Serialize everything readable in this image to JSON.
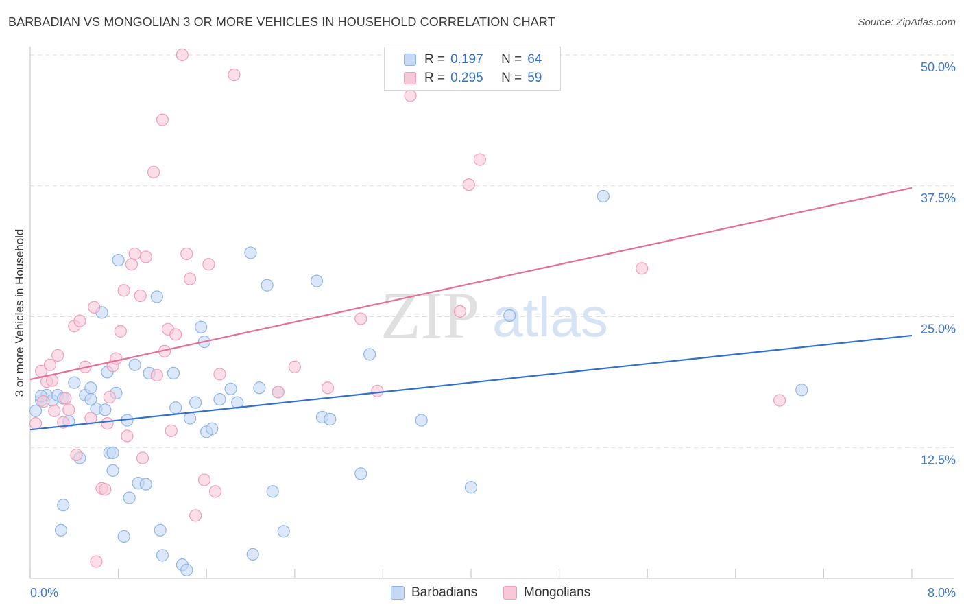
{
  "header": {
    "title": "BARBADIAN VS MONGOLIAN 3 OR MORE VEHICLES IN HOUSEHOLD CORRELATION CHART",
    "source": "Source: ZipAtlas.com"
  },
  "watermark": {
    "zip": "ZIP",
    "atlas": "atlas"
  },
  "legend": {
    "r_label": "R =",
    "n_label": "N =",
    "rows": [
      {
        "r": "0.197",
        "n": "64"
      },
      {
        "r": "0.295",
        "n": "59"
      }
    ]
  },
  "colors": {
    "barbadian_fill": "#c5d9f7",
    "barbadian_stroke": "#8db4e8",
    "barbadian_line": "#2f6fce",
    "mongolian_fill": "#f9c8d8",
    "mongolian_stroke": "#ef9db9",
    "mongolian_line": "#e46e95",
    "axis_label": "#3f78c9",
    "grid": "#dddddd"
  },
  "chart_data": {
    "type": "scatter",
    "title": "BARBADIAN VS MONGOLIAN 3 OR MORE VEHICLES IN HOUSEHOLD CORRELATION CHART",
    "xlabel": "",
    "ylabel": "3 or more Vehicles in Household",
    "xlim": [
      0,
      8
    ],
    "ylim": [
      0,
      50
    ],
    "x_tick_labels": [
      "0.0%",
      "8.0%"
    ],
    "y_ticks": [
      12.5,
      25.0,
      37.5,
      50.0
    ],
    "y_tick_labels": [
      "12.5%",
      "25.0%",
      "37.5%",
      "50.0%"
    ],
    "grid": true,
    "legend_position": "top-center",
    "series": [
      {
        "name": "Barbadians",
        "r": 0.197,
        "n": 64,
        "trend": {
          "x": [
            0,
            8
          ],
          "y": [
            14.2,
            23.2
          ]
        },
        "points": [
          [
            0.05,
            16.0
          ],
          [
            0.1,
            17.0
          ],
          [
            0.15,
            17.5
          ],
          [
            0.2,
            17.0
          ],
          [
            0.25,
            17.5
          ],
          [
            0.3,
            17.2
          ],
          [
            0.35,
            15.0
          ],
          [
            0.4,
            18.7
          ],
          [
            0.45,
            11.5
          ],
          [
            0.5,
            17.5
          ],
          [
            0.55,
            18.2
          ],
          [
            0.6,
            16.2
          ],
          [
            0.65,
            25.4
          ],
          [
            0.68,
            16.1
          ],
          [
            0.7,
            19.7
          ],
          [
            0.72,
            12.0
          ],
          [
            0.75,
            10.3
          ],
          [
            0.78,
            17.7
          ],
          [
            0.8,
            30.4
          ],
          [
            0.85,
            4.0
          ],
          [
            0.88,
            15.1
          ],
          [
            0.9,
            7.7
          ],
          [
            0.95,
            20.4
          ],
          [
            0.98,
            9.1
          ],
          [
            1.05,
            9.0
          ],
          [
            1.08,
            19.6
          ],
          [
            1.15,
            26.9
          ],
          [
            1.18,
            4.6
          ],
          [
            1.2,
            2.2
          ],
          [
            1.3,
            19.6
          ],
          [
            1.32,
            16.3
          ],
          [
            1.38,
            1.3
          ],
          [
            1.42,
            0.8
          ],
          [
            1.45,
            15.3
          ],
          [
            1.5,
            16.8
          ],
          [
            1.55,
            24.0
          ],
          [
            1.58,
            22.6
          ],
          [
            1.6,
            14.0
          ],
          [
            1.65,
            14.3
          ],
          [
            1.72,
            17.1
          ],
          [
            1.82,
            18.1
          ],
          [
            1.88,
            16.8
          ],
          [
            2.0,
            31.1
          ],
          [
            2.02,
            2.3
          ],
          [
            2.08,
            18.2
          ],
          [
            2.15,
            28.0
          ],
          [
            2.2,
            8.3
          ],
          [
            2.25,
            17.8
          ],
          [
            2.3,
            4.5
          ],
          [
            2.6,
            28.4
          ],
          [
            2.65,
            15.4
          ],
          [
            2.72,
            15.2
          ],
          [
            3.0,
            10.0
          ],
          [
            3.08,
            21.4
          ],
          [
            3.55,
            15.1
          ],
          [
            4.0,
            8.7
          ],
          [
            4.35,
            25.1
          ],
          [
            5.2,
            36.5
          ],
          [
            7.0,
            18.0
          ],
          [
            0.1,
            17.4
          ],
          [
            0.3,
            7.0
          ],
          [
            0.28,
            4.6
          ],
          [
            0.55,
            17.1
          ],
          [
            0.75,
            12.0
          ]
        ]
      },
      {
        "name": "Mongolians",
        "r": 0.295,
        "n": 59,
        "trend": {
          "x": [
            0,
            8
          ],
          "y": [
            19.0,
            37.3
          ]
        },
        "points": [
          [
            0.05,
            14.8
          ],
          [
            0.1,
            19.8
          ],
          [
            0.12,
            16.9
          ],
          [
            0.15,
            18.8
          ],
          [
            0.18,
            20.4
          ],
          [
            0.2,
            18.9
          ],
          [
            0.22,
            16.0
          ],
          [
            0.25,
            21.3
          ],
          [
            0.3,
            14.9
          ],
          [
            0.32,
            17.2
          ],
          [
            0.35,
            16.1
          ],
          [
            0.4,
            24.1
          ],
          [
            0.42,
            11.8
          ],
          [
            0.45,
            24.6
          ],
          [
            0.5,
            20.2
          ],
          [
            0.55,
            15.3
          ],
          [
            0.58,
            25.9
          ],
          [
            0.6,
            1.6
          ],
          [
            0.65,
            8.6
          ],
          [
            0.68,
            8.5
          ],
          [
            0.7,
            14.8
          ],
          [
            0.72,
            17.3
          ],
          [
            0.75,
            20.3
          ],
          [
            0.78,
            21.0
          ],
          [
            0.82,
            23.6
          ],
          [
            0.85,
            27.5
          ],
          [
            0.88,
            13.6
          ],
          [
            0.92,
            30.0
          ],
          [
            0.95,
            31.0
          ],
          [
            1.0,
            27.0
          ],
          [
            1.02,
            11.5
          ],
          [
            1.05,
            30.7
          ],
          [
            1.12,
            38.8
          ],
          [
            1.15,
            19.4
          ],
          [
            1.2,
            43.8
          ],
          [
            1.22,
            21.7
          ],
          [
            1.25,
            23.8
          ],
          [
            1.28,
            14.1
          ],
          [
            1.32,
            23.3
          ],
          [
            1.38,
            50.0
          ],
          [
            1.42,
            31.0
          ],
          [
            1.45,
            28.6
          ],
          [
            1.5,
            6.0
          ],
          [
            1.58,
            9.4
          ],
          [
            1.62,
            30.0
          ],
          [
            1.68,
            8.3
          ],
          [
            1.72,
            19.5
          ],
          [
            1.85,
            48.1
          ],
          [
            2.25,
            17.8
          ],
          [
            2.4,
            20.2
          ],
          [
            2.7,
            18.2
          ],
          [
            3.0,
            24.8
          ],
          [
            3.15,
            17.9
          ],
          [
            3.45,
            46.1
          ],
          [
            3.9,
            25.5
          ],
          [
            3.98,
            37.6
          ],
          [
            4.08,
            40.0
          ],
          [
            5.55,
            29.6
          ],
          [
            6.8,
            17.0
          ]
        ]
      }
    ]
  },
  "bottom_legend": {
    "items": [
      "Barbadians",
      "Mongolians"
    ]
  }
}
